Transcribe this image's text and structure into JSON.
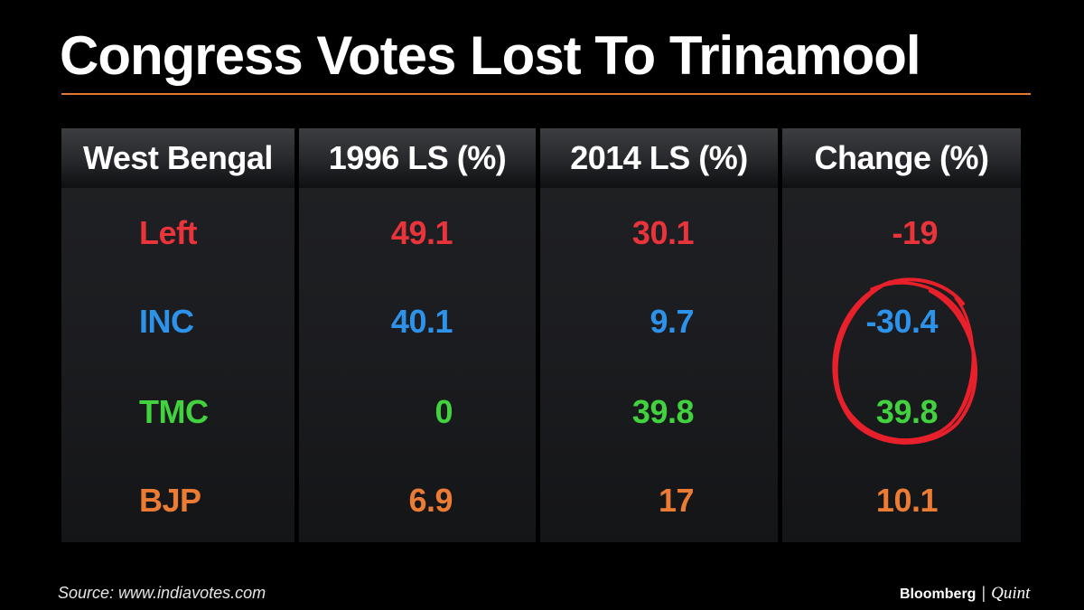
{
  "title": "Congress Votes Lost To Trinamool",
  "source": "Source: www.indiavotes.com",
  "brand": {
    "name": "Bloomberg",
    "separator": "|",
    "partner": "Quint"
  },
  "colors": {
    "accent_rule": "#e4782e",
    "Left": "#e8343a",
    "INC": "#2d93ea",
    "TMC": "#42d23f",
    "BJP": "#ec7c34",
    "circle": "#e8202b"
  },
  "chart_data": {
    "type": "table",
    "title": "Congress Votes Lost To Trinamool",
    "columns": [
      "West Bengal",
      "1996 LS (%)",
      "2014 LS (%)",
      "Change (%)"
    ],
    "rows": [
      {
        "party": "Left",
        "y1996": "49.1",
        "y2014": "30.1",
        "change": "-19"
      },
      {
        "party": "INC",
        "y1996": "40.1",
        "y2014": "9.7",
        "change": "-30.4"
      },
      {
        "party": "TMC",
        "y1996": "0",
        "y2014": "39.8",
        "change": "39.8"
      },
      {
        "party": "BJP",
        "y1996": "6.9",
        "y2014": "17",
        "change": "10.1"
      }
    ],
    "annotations": [
      "hand-drawn red circle around INC and TMC change values (-30.4, 39.8)"
    ]
  }
}
